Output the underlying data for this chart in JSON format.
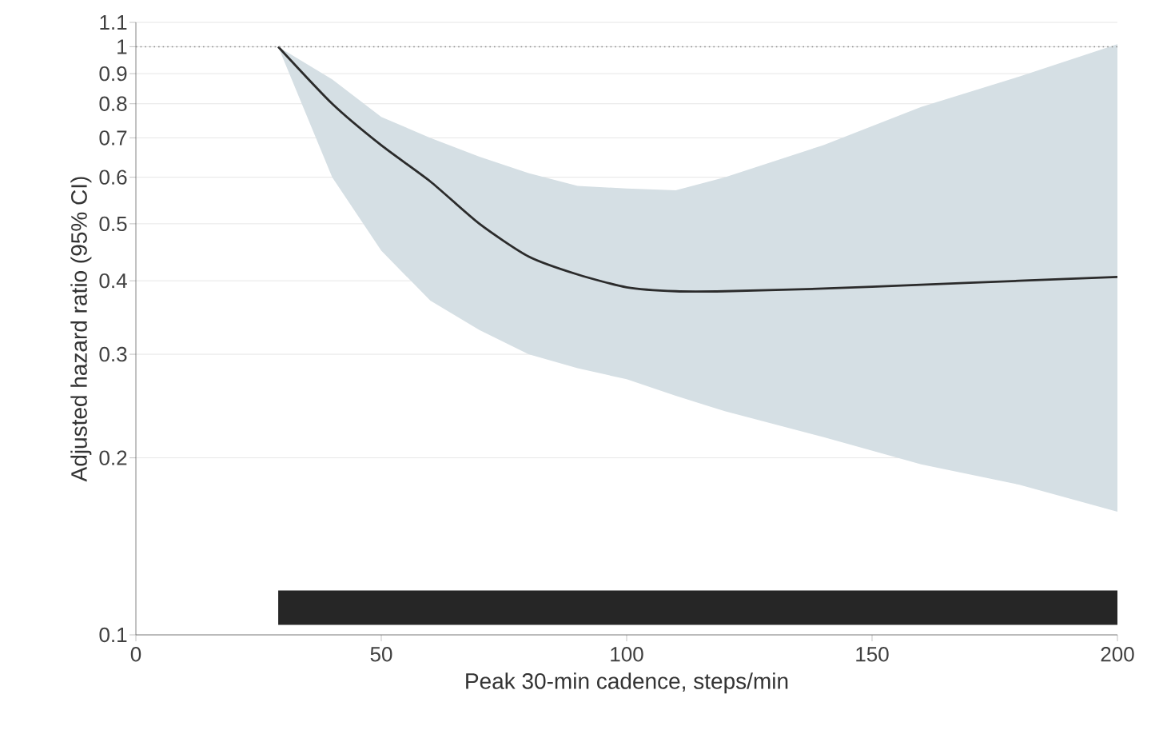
{
  "chart_data": {
    "type": "line",
    "xlabel": "Peak 30-min cadence, steps/min",
    "ylabel": "Adjusted hazard ratio (95% CI)",
    "log": "y",
    "xlim": [
      0,
      200
    ],
    "xticks": [
      0,
      50,
      100,
      150,
      200
    ],
    "ylim": [
      0.1,
      1.1
    ],
    "yticks": [
      0.1,
      0.2,
      0.3,
      0.4,
      0.5,
      0.6,
      0.7,
      0.8,
      0.9,
      1,
      1.1
    ],
    "grid": "y",
    "marker": "none",
    "line_style": "solid",
    "ref_lines": [
      {
        "axis": "y",
        "value": 1,
        "line_style": "dotted",
        "color": "#8c8c8c"
      }
    ],
    "series": [
      {
        "color": "#2b2b2b",
        "x": [
          29,
          40,
          50,
          60,
          70,
          80,
          90,
          100,
          110,
          120,
          140,
          160,
          180,
          200
        ],
        "values": [
          1,
          0.8,
          0.68,
          0.59,
          0.5,
          0.44,
          0.41,
          0.39,
          0.384,
          0.384,
          0.388,
          0.394,
          0.4,
          0.406
        ],
        "upper": [
          1,
          0.88,
          0.76,
          0.7,
          0.65,
          0.61,
          0.58,
          0.574,
          0.57,
          0.6,
          0.68,
          0.79,
          0.89,
          1.01
        ],
        "lower": [
          1,
          0.6,
          0.45,
          0.37,
          0.33,
          0.3,
          0.284,
          0.272,
          0.255,
          0.24,
          0.217,
          0.195,
          0.18,
          0.162
        ]
      }
    ]
  }
}
